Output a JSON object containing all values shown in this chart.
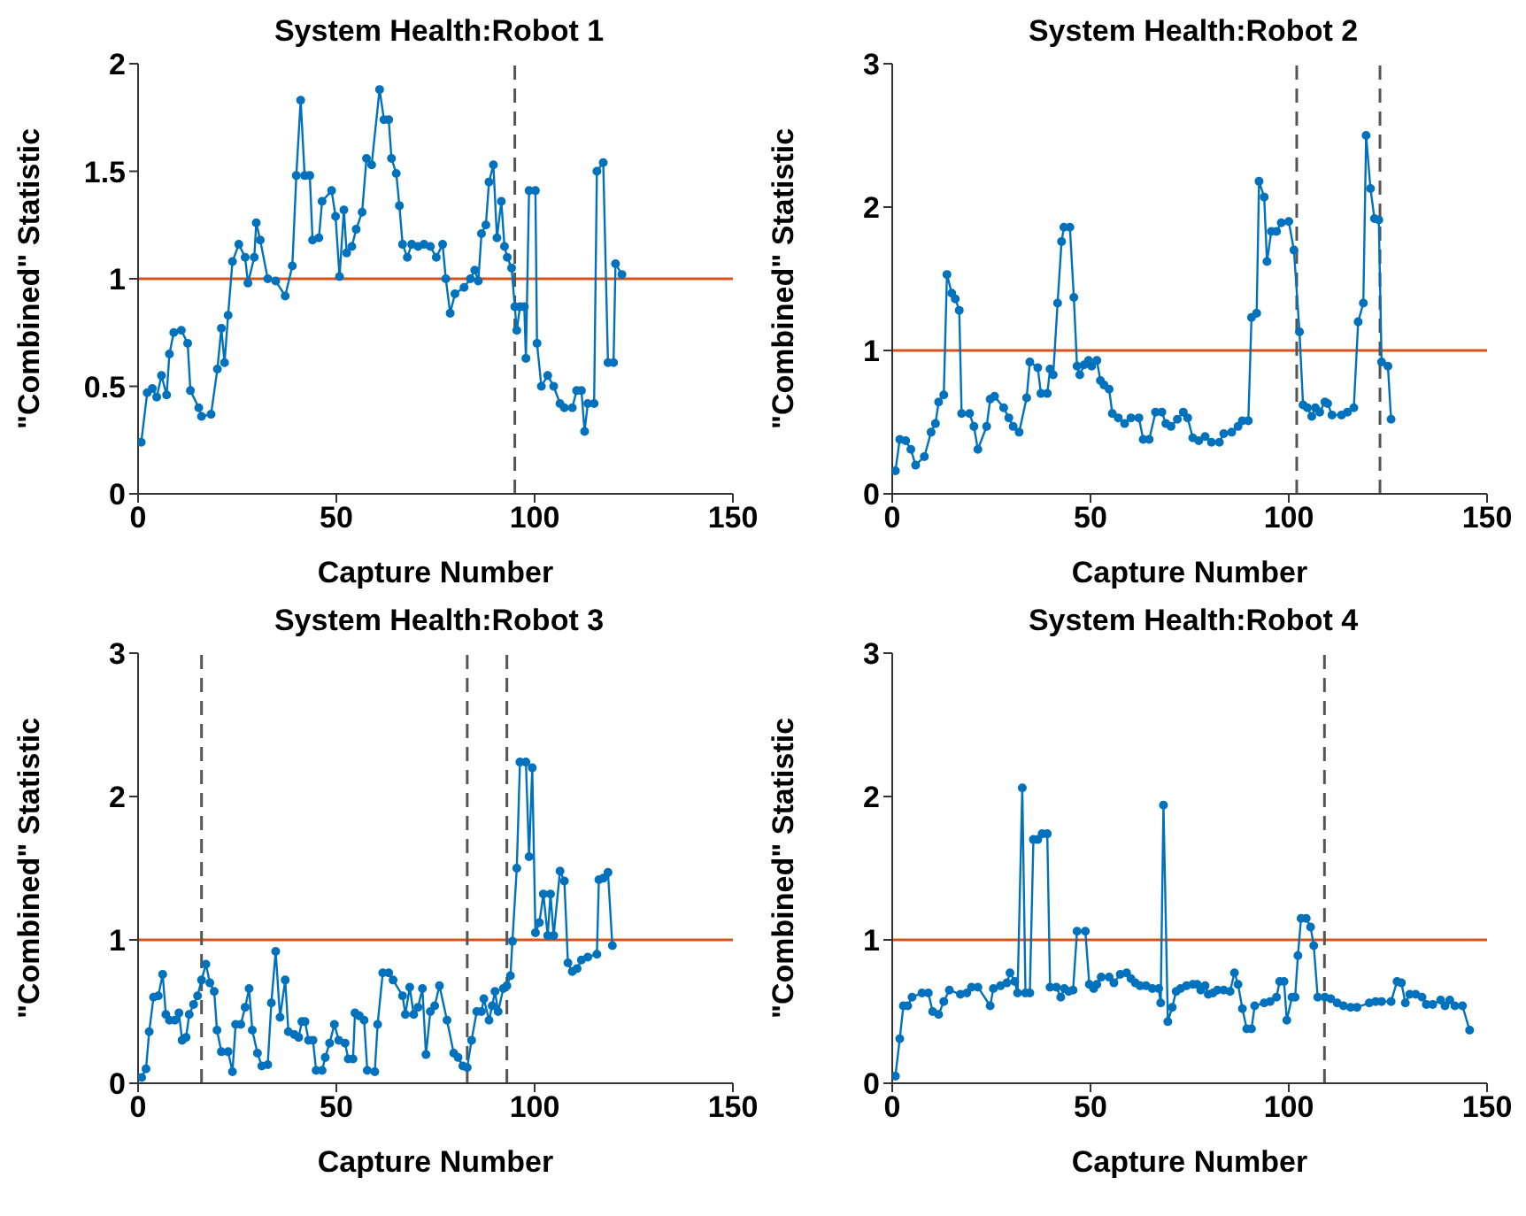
{
  "chart_data": [
    {
      "type": "line",
      "title": "System Health:Robot 1",
      "xlabel": "Capture Number",
      "ylabel": "\"Combined\" Statistic",
      "marker": "circle",
      "line_style": "solid",
      "xlim": [
        0,
        150
      ],
      "xticks": [
        0,
        50,
        100,
        150
      ],
      "ylim": [
        0,
        2
      ],
      "yticks": [
        0,
        0.5,
        1,
        1.5,
        2
      ],
      "grid": false,
      "legend": false,
      "ref_lines": [
        {
          "axis": "y",
          "value": 1,
          "color": "#d95319",
          "line_style": "solid"
        },
        {
          "axis": "x",
          "value": 95,
          "color": "#555555",
          "line_style": "dashed"
        }
      ],
      "series": [
        {
          "color": "#0072bd",
          "x": [
            0.8,
            2.3,
            3.6,
            4.7,
            5.9,
            7.2,
            7.9,
            9,
            10.9,
            12.5,
            13.2,
            15.3,
            16,
            18.4,
            20,
            21,
            21.8,
            22.7,
            23.8,
            25.4,
            27,
            27.7,
            29.3,
            29.8,
            30.8,
            32.7,
            34.7,
            37.1,
            38.9,
            39.9,
            41,
            42,
            43.3,
            44,
            45.6,
            46.4,
            48.8,
            49.8,
            50.8,
            51.9,
            52.6,
            53.9,
            55,
            56.5,
            57.6,
            58.9,
            60.9,
            62,
            63.2,
            63.9,
            65.1,
            65.9,
            66.7,
            67.9,
            69,
            70.6,
            72.1,
            73.7,
            75.2,
            76.8,
            77.6,
            78.7,
            79.9,
            82.2,
            83.8,
            84.9,
            85.8,
            86.6,
            87.7,
            88.5,
            89.6,
            90.5,
            91.6,
            92.4,
            93.1,
            94.2,
            95,
            95.5,
            96.3,
            97.4,
            97.8,
            98.6,
            100.2,
            100.6,
            101.7,
            103.3,
            104.8,
            106.4,
            107.5,
            109.5,
            110.6,
            111.8,
            112.6,
            113.4,
            115,
            115.7,
            117.3,
            118.5,
            119.9,
            120.4,
            122
          ],
          "values": [
            0.24,
            0.47,
            0.49,
            0.45,
            0.55,
            0.46,
            0.65,
            0.75,
            0.76,
            0.7,
            0.48,
            0.4,
            0.36,
            0.37,
            0.58,
            0.77,
            0.61,
            0.83,
            1.08,
            1.16,
            1.1,
            0.98,
            1.1,
            1.26,
            1.18,
            1,
            0.99,
            0.92,
            1.06,
            1.48,
            1.83,
            1.48,
            1.48,
            1.18,
            1.19,
            1.36,
            1.41,
            1.29,
            1.01,
            1.32,
            1.12,
            1.15,
            1.23,
            1.31,
            1.56,
            1.53,
            1.88,
            1.74,
            1.74,
            1.56,
            1.49,
            1.34,
            1.16,
            1.1,
            1.16,
            1.15,
            1.16,
            1.15,
            1.1,
            1.16,
            1,
            0.84,
            0.93,
            0.96,
            1,
            1.04,
            0.99,
            1.21,
            1.25,
            1.45,
            1.53,
            1.19,
            1.36,
            1.15,
            1.1,
            1.05,
            0.87,
            0.76,
            0.87,
            0.87,
            0.63,
            1.41,
            1.41,
            0.7,
            0.5,
            0.55,
            0.5,
            0.42,
            0.4,
            0.4,
            0.48,
            0.48,
            0.29,
            0.42,
            0.42,
            1.5,
            1.54,
            0.61,
            0.61,
            1.07,
            1.02
          ]
        }
      ]
    },
    {
      "type": "line",
      "title": "System Health:Robot 2",
      "xlabel": "Capture Number",
      "ylabel": "\"Combined\" Statistic",
      "marker": "circle",
      "line_style": "solid",
      "xlim": [
        0,
        150
      ],
      "xticks": [
        0,
        50,
        100,
        150
      ],
      "ylim": [
        0,
        3
      ],
      "yticks": [
        0,
        1,
        2,
        3
      ],
      "grid": false,
      "legend": false,
      "ref_lines": [
        {
          "axis": "y",
          "value": 1,
          "color": "#d95319",
          "line_style": "solid"
        },
        {
          "axis": "x",
          "value": 102,
          "color": "#555555",
          "line_style": "dashed"
        },
        {
          "axis": "x",
          "value": 123,
          "color": "#555555",
          "line_style": "dashed"
        }
      ],
      "series": [
        {
          "color": "#0072bd",
          "x": [
            0.8,
            1.9,
            3.4,
            4.7,
            5.9,
            8.1,
            9.8,
            10.9,
            11.7,
            13,
            13.8,
            15,
            15.9,
            16.9,
            17.5,
            19.5,
            20.6,
            21.6,
            23.8,
            24.7,
            25.8,
            28.1,
            29.4,
            30.5,
            32,
            33.9,
            34.7,
            36.7,
            37.5,
            39.1,
            39.8,
            40.6,
            41.7,
            42.7,
            43.3,
            44.8,
            45.8,
            46.6,
            47.3,
            48.4,
            49.5,
            50.3,
            51.6,
            52.5,
            53.4,
            54.7,
            55.5,
            57,
            58.6,
            60.2,
            62.2,
            63.3,
            64.8,
            66.4,
            68,
            69,
            70.3,
            71.9,
            73.4,
            74.5,
            75.8,
            77.3,
            78.9,
            80.5,
            82.5,
            83.6,
            85.6,
            87.2,
            88.3,
            89.8,
            90.6,
            91.9,
            92.5,
            93.8,
            94.5,
            95.6,
            96.9,
            98.1,
            100,
            101.3,
            102.7,
            103.6,
            104.7,
            105.8,
            106.7,
            107.8,
            109.1,
            109.8,
            110.9,
            113.3,
            114.8,
            116.4,
            117.5,
            118.8,
            119.5,
            120.6,
            121.6,
            122.7,
            123.4,
            125,
            125.8
          ],
          "values": [
            0.16,
            0.38,
            0.37,
            0.31,
            0.2,
            0.26,
            0.43,
            0.49,
            0.64,
            0.69,
            1.53,
            1.4,
            1.36,
            1.28,
            0.56,
            0.56,
            0.47,
            0.31,
            0.47,
            0.66,
            0.68,
            0.6,
            0.53,
            0.47,
            0.43,
            0.67,
            0.92,
            0.88,
            0.7,
            0.7,
            0.87,
            0.83,
            1.33,
            1.76,
            1.86,
            1.86,
            1.37,
            0.89,
            0.83,
            0.9,
            0.93,
            0.89,
            0.93,
            0.79,
            0.76,
            0.73,
            0.56,
            0.53,
            0.49,
            0.53,
            0.53,
            0.38,
            0.38,
            0.57,
            0.57,
            0.49,
            0.47,
            0.52,
            0.57,
            0.53,
            0.39,
            0.37,
            0.4,
            0.36,
            0.36,
            0.42,
            0.43,
            0.47,
            0.51,
            0.51,
            1.23,
            1.26,
            2.18,
            2.07,
            1.62,
            1.83,
            1.83,
            1.89,
            1.9,
            1.7,
            1.13,
            0.62,
            0.6,
            0.54,
            0.6,
            0.57,
            0.64,
            0.63,
            0.55,
            0.55,
            0.57,
            0.6,
            1.2,
            1.33,
            2.5,
            2.13,
            1.92,
            1.91,
            0.92,
            0.89,
            0.52
          ]
        }
      ]
    },
    {
      "type": "line",
      "title": "System Health:Robot 3",
      "xlabel": "Capture Number",
      "ylabel": "\"Combined\" Statistic",
      "marker": "circle",
      "line_style": "solid",
      "xlim": [
        0,
        150
      ],
      "xticks": [
        0,
        50,
        100,
        150
      ],
      "ylim": [
        0,
        3
      ],
      "yticks": [
        0,
        1,
        2,
        3
      ],
      "grid": false,
      "legend": false,
      "ref_lines": [
        {
          "axis": "y",
          "value": 1,
          "color": "#d95319",
          "line_style": "solid"
        },
        {
          "axis": "x",
          "value": 16,
          "color": "#555555",
          "line_style": "dashed"
        },
        {
          "axis": "x",
          "value": 83,
          "color": "#555555",
          "line_style": "dashed"
        },
        {
          "axis": "x",
          "value": 93,
          "color": "#555555",
          "line_style": "dashed"
        }
      ],
      "series": [
        {
          "color": "#0072bd",
          "x": [
            0.9,
            2,
            2.8,
            3.9,
            5.1,
            6.2,
            7,
            7.9,
            9.3,
            10.3,
            11.1,
            12.1,
            12.9,
            14,
            15,
            16,
            17.1,
            18.1,
            19.2,
            19.9,
            21,
            22.7,
            23.8,
            24.6,
            25.9,
            27,
            28,
            28.8,
            30.1,
            31.2,
            32.7,
            33.6,
            34.7,
            35.8,
            37.1,
            37.9,
            39.4,
            40.5,
            41.3,
            42.1,
            43,
            44.1,
            44.9,
            46.4,
            47.2,
            48.3,
            49.5,
            50.6,
            52.2,
            53,
            54.2,
            54.7,
            55.8,
            57,
            57.8,
            59.7,
            60.4,
            61.7,
            63.2,
            64.3,
            66.7,
            67.4,
            68.5,
            69.5,
            70.6,
            71.7,
            72.6,
            73.7,
            74.8,
            76,
            77.9,
            79.6,
            80.7,
            81.9,
            83,
            84.1,
            85.4,
            86.6,
            87.2,
            88.5,
            89.3,
            90,
            90.8,
            92.1,
            93,
            93.9,
            94.4,
            95.5,
            96.3,
            97.8,
            98.6,
            99.4,
            100.2,
            101.2,
            102.2,
            103.3,
            104,
            104.8,
            106.4,
            107.5,
            108.4,
            109.5,
            110.7,
            111.8,
            113.4,
            115.7,
            116.2,
            117.3,
            118.5,
            119.6
          ],
          "values": [
            0.04,
            0.1,
            0.36,
            0.6,
            0.61,
            0.76,
            0.48,
            0.44,
            0.44,
            0.49,
            0.3,
            0.32,
            0.48,
            0.55,
            0.61,
            0.72,
            0.83,
            0.7,
            0.64,
            0.37,
            0.22,
            0.22,
            0.08,
            0.41,
            0.41,
            0.53,
            0.66,
            0.37,
            0.21,
            0.12,
            0.13,
            0.56,
            0.92,
            0.46,
            0.72,
            0.36,
            0.34,
            0.32,
            0.43,
            0.43,
            0.3,
            0.3,
            0.09,
            0.09,
            0.18,
            0.28,
            0.41,
            0.3,
            0.28,
            0.17,
            0.17,
            0.49,
            0.47,
            0.44,
            0.09,
            0.08,
            0.41,
            0.77,
            0.77,
            0.72,
            0.61,
            0.48,
            0.67,
            0.48,
            0.53,
            0.66,
            0.2,
            0.5,
            0.54,
            0.68,
            0.44,
            0.21,
            0.18,
            0.12,
            0.11,
            0.3,
            0.5,
            0.5,
            0.59,
            0.44,
            0.54,
            0.64,
            0.5,
            0.66,
            0.68,
            0.75,
            0.99,
            1.5,
            2.24,
            2.24,
            1.58,
            2.2,
            1.05,
            1.12,
            1.32,
            1.03,
            1.32,
            1.03,
            1.48,
            1.41,
            0.84,
            0.78,
            0.8,
            0.86,
            0.88,
            0.9,
            1.42,
            1.43,
            1.47,
            0.96
          ]
        }
      ]
    },
    {
      "type": "line",
      "title": "System Health:Robot 4",
      "xlabel": "Capture Number",
      "ylabel": "\"Combined\" Statistic",
      "marker": "circle",
      "line_style": "solid",
      "xlim": [
        0,
        150
      ],
      "xticks": [
        0,
        50,
        100,
        150
      ],
      "ylim": [
        0,
        3
      ],
      "yticks": [
        0,
        1,
        2,
        3
      ],
      "grid": false,
      "legend": false,
      "ref_lines": [
        {
          "axis": "y",
          "value": 1,
          "color": "#d95319",
          "line_style": "solid"
        },
        {
          "axis": "x",
          "value": 109,
          "color": "#555555",
          "line_style": "dashed"
        }
      ],
      "series": [
        {
          "color": "#0072bd",
          "x": [
            0.8,
            1.9,
            2.8,
            3.9,
            5,
            7.5,
            9.1,
            10.2,
            11.7,
            13,
            14.4,
            17.2,
            18.8,
            20,
            21.6,
            24.7,
            25.5,
            27.3,
            28.9,
            29.7,
            30.9,
            31.6,
            32.8,
            33.6,
            34.7,
            35.6,
            36.7,
            37.8,
            39.1,
            39.8,
            41.4,
            42.5,
            43.4,
            44.5,
            45.6,
            46.6,
            48.7,
            49.7,
            50.8,
            51.6,
            52.7,
            54.7,
            55.9,
            57.5,
            59.1,
            60.2,
            61.3,
            62.5,
            64,
            65.6,
            67.2,
            67.7,
            68.4,
            69.5,
            70.6,
            71.6,
            72.7,
            74.2,
            75.8,
            76.9,
            77.8,
            78.9,
            79.7,
            80.9,
            82,
            83.6,
            85.2,
            86.3,
            87.2,
            88.3,
            89.4,
            90.6,
            91.4,
            93.8,
            95.3,
            96.9,
            97.7,
            98.8,
            99.5,
            100.8,
            101.6,
            102.3,
            103.1,
            104.4,
            105.5,
            106.3,
            107.3,
            109.1,
            110.6,
            112.2,
            113.8,
            115.6,
            117.2,
            120.3,
            121.9,
            123.4,
            125.8,
            127.3,
            128.4,
            129.4,
            130.5,
            132,
            133.6,
            134.7,
            136.3,
            138.3,
            139.4,
            140.6,
            141.9,
            143.8,
            145.6
          ],
          "values": [
            0.05,
            0.31,
            0.54,
            0.54,
            0.6,
            0.63,
            0.63,
            0.5,
            0.48,
            0.57,
            0.65,
            0.62,
            0.63,
            0.67,
            0.67,
            0.54,
            0.66,
            0.68,
            0.7,
            0.77,
            0.71,
            0.63,
            2.06,
            0.63,
            0.63,
            1.7,
            1.7,
            1.74,
            1.74,
            0.67,
            0.67,
            0.6,
            0.66,
            0.64,
            0.65,
            1.06,
            1.06,
            0.69,
            0.66,
            0.69,
            0.74,
            0.74,
            0.7,
            0.76,
            0.77,
            0.73,
            0.7,
            0.68,
            0.68,
            0.66,
            0.66,
            0.56,
            1.94,
            0.43,
            0.53,
            0.64,
            0.66,
            0.68,
            0.69,
            0.69,
            0.65,
            0.68,
            0.62,
            0.63,
            0.65,
            0.65,
            0.64,
            0.77,
            0.69,
            0.52,
            0.38,
            0.38,
            0.54,
            0.56,
            0.57,
            0.6,
            0.71,
            0.71,
            0.44,
            0.6,
            0.6,
            0.89,
            1.15,
            1.15,
            1.09,
            0.96,
            0.6,
            0.6,
            0.59,
            0.56,
            0.54,
            0.53,
            0.53,
            0.56,
            0.57,
            0.57,
            0.57,
            0.71,
            0.7,
            0.56,
            0.62,
            0.62,
            0.6,
            0.55,
            0.55,
            0.58,
            0.54,
            0.58,
            0.54,
            0.54,
            0.37
          ]
        }
      ]
    }
  ]
}
